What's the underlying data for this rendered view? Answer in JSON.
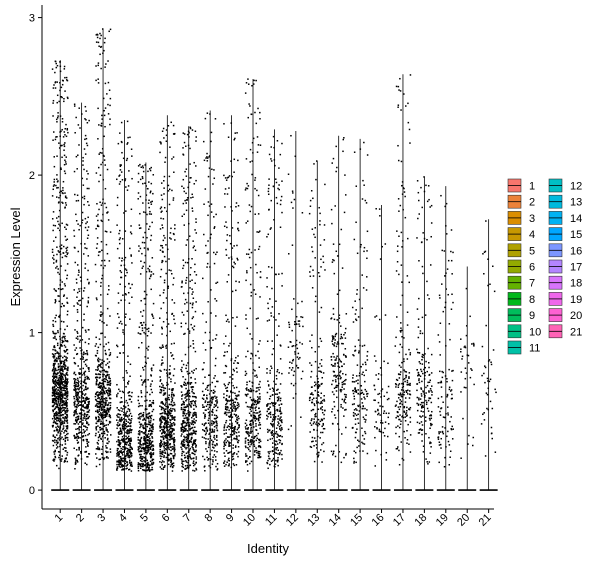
{
  "chart_data": {
    "type": "violin",
    "xlabel": "Identity",
    "ylabel": "Expression Level",
    "ylim": [
      -0.12,
      3.08
    ],
    "y_ticks": [
      0,
      1,
      2,
      3
    ],
    "y_tick_labels": [
      "0",
      "1",
      "2",
      "3"
    ],
    "categories": [
      "1",
      "2",
      "3",
      "4",
      "5",
      "6",
      "7",
      "8",
      "9",
      "10",
      "11",
      "12",
      "13",
      "14",
      "15",
      "16",
      "17",
      "18",
      "19",
      "20",
      "21"
    ],
    "category_max": [
      2.73,
      2.46,
      2.93,
      2.35,
      2.08,
      2.38,
      2.31,
      2.41,
      2.38,
      2.61,
      2.29,
      2.28,
      2.09,
      2.25,
      2.23,
      1.81,
      2.64,
      1.99,
      1.93,
      1.42,
      1.72
    ],
    "point_density": [
      1.0,
      0.55,
      0.6,
      0.5,
      0.55,
      0.6,
      0.55,
      0.3,
      0.35,
      0.35,
      0.3,
      0.08,
      0.2,
      0.2,
      0.18,
      0.08,
      0.22,
      0.2,
      0.12,
      0.04,
      0.05
    ],
    "cluster_center": [
      0.6,
      0.55,
      0.55,
      0.3,
      0.3,
      0.4,
      0.4,
      0.45,
      0.45,
      0.45,
      0.45,
      0.9,
      0.5,
      0.8,
      0.6,
      0.5,
      0.55,
      0.6,
      0.5,
      0.85,
      0.6
    ],
    "legend": {
      "entries": [
        {
          "label": "1",
          "color": "#F8766D"
        },
        {
          "label": "2",
          "color": "#EC8239"
        },
        {
          "label": "3",
          "color": "#DB8E00"
        },
        {
          "label": "4",
          "color": "#C79800"
        },
        {
          "label": "5",
          "color": "#AFA100"
        },
        {
          "label": "6",
          "color": "#93AA00"
        },
        {
          "label": "7",
          "color": "#64B200"
        },
        {
          "label": "8",
          "color": "#00B81B"
        },
        {
          "label": "9",
          "color": "#00BD5C"
        },
        {
          "label": "10",
          "color": "#00C085"
        },
        {
          "label": "11",
          "color": "#00C1A7"
        },
        {
          "label": "12",
          "color": "#00BFC4"
        },
        {
          "label": "13",
          "color": "#00BADE"
        },
        {
          "label": "14",
          "color": "#00B2F3"
        },
        {
          "label": "15",
          "color": "#00A6FF"
        },
        {
          "label": "16",
          "color": "#7C96FF"
        },
        {
          "label": "17",
          "color": "#B385FF"
        },
        {
          "label": "18",
          "color": "#D874FD"
        },
        {
          "label": "19",
          "color": "#EF67EB"
        },
        {
          "label": "20",
          "color": "#FD61D3"
        },
        {
          "label": "21",
          "color": "#FF63B6"
        }
      ],
      "columns": 2,
      "placement": "right"
    },
    "grid": false
  }
}
